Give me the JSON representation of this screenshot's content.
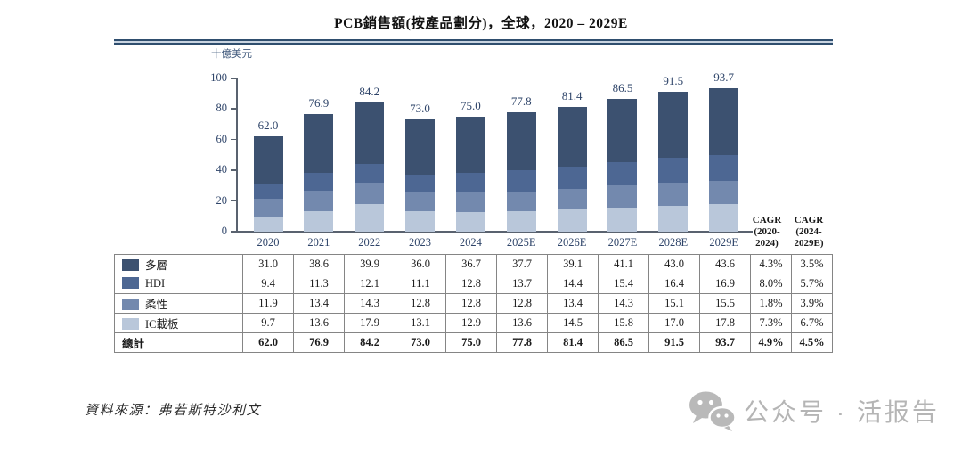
{
  "title": "PCB銷售額(按產品劃分)，全球，2020 – 2029E",
  "source": "資料來源：弗若斯特沙利文",
  "watermark": {
    "text": "公众号 · 活报告",
    "icon": "wechat-icon",
    "color": "#b5b5b5"
  },
  "chart_data": {
    "type": "bar",
    "stacked": true,
    "title": "PCB銷售額(按產品劃分)，全球，2020 – 2029E",
    "ylabel": "十億美元",
    "ylim": [
      0,
      100
    ],
    "yticks": [
      0,
      20,
      40,
      60,
      80,
      100
    ],
    "grid": false,
    "legend_position": "table-left",
    "categories": [
      "2020",
      "2021",
      "2022",
      "2023",
      "2024",
      "2025E",
      "2026E",
      "2027E",
      "2028E",
      "2029E"
    ],
    "series": [
      {
        "name": "IC載板",
        "color": "#b9c7da",
        "values": [
          9.7,
          13.6,
          17.9,
          13.1,
          12.9,
          13.6,
          14.5,
          15.8,
          17.0,
          17.8
        ]
      },
      {
        "name": "柔性",
        "color": "#7389ae",
        "values": [
          11.9,
          13.4,
          14.3,
          12.8,
          12.8,
          12.8,
          13.4,
          14.3,
          15.1,
          15.5
        ]
      },
      {
        "name": "HDI",
        "color": "#4d6793",
        "values": [
          9.4,
          11.3,
          12.1,
          11.1,
          12.8,
          13.7,
          14.4,
          15.4,
          16.4,
          16.9
        ]
      },
      {
        "name": "多層",
        "color": "#3c5170",
        "values": [
          31.0,
          38.6,
          39.9,
          36.0,
          36.7,
          37.7,
          39.1,
          41.1,
          43.0,
          43.6
        ]
      }
    ],
    "totals": [
      "62.0",
      "76.9",
      "84.2",
      "73.0",
      "75.0",
      "77.8",
      "81.4",
      "86.5",
      "91.5",
      "93.7"
    ]
  },
  "cagr_headers": [
    {
      "lines": [
        "CAGR",
        "(2020-",
        "2024)"
      ]
    },
    {
      "lines": [
        "CAGR",
        "(2024-",
        "2029E)"
      ]
    }
  ],
  "table": {
    "rows": [
      {
        "label": "多層",
        "swatch": "#3c5170",
        "bold": false,
        "values": [
          "31.0",
          "38.6",
          "39.9",
          "36.0",
          "36.7",
          "37.7",
          "39.1",
          "41.1",
          "43.0",
          "43.6"
        ],
        "cagr": [
          "4.3%",
          "3.5%"
        ]
      },
      {
        "label": "HDI",
        "swatch": "#4d6793",
        "bold": false,
        "values": [
          "9.4",
          "11.3",
          "12.1",
          "11.1",
          "12.8",
          "13.7",
          "14.4",
          "15.4",
          "16.4",
          "16.9"
        ],
        "cagr": [
          "8.0%",
          "5.7%"
        ]
      },
      {
        "label": "柔性",
        "swatch": "#7389ae",
        "bold": false,
        "values": [
          "11.9",
          "13.4",
          "14.3",
          "12.8",
          "12.8",
          "12.8",
          "13.4",
          "14.3",
          "15.1",
          "15.5"
        ],
        "cagr": [
          "1.8%",
          "3.9%"
        ]
      },
      {
        "label": "IC載板",
        "swatch": "#b9c7da",
        "bold": false,
        "values": [
          "9.7",
          "13.6",
          "17.9",
          "13.1",
          "12.9",
          "13.6",
          "14.5",
          "15.8",
          "17.0",
          "17.8"
        ],
        "cagr": [
          "7.3%",
          "6.7%"
        ]
      },
      {
        "label": "總計",
        "swatch": null,
        "bold": true,
        "values": [
          "62.0",
          "76.9",
          "84.2",
          "73.0",
          "75.0",
          "77.8",
          "81.4",
          "86.5",
          "91.5",
          "93.7"
        ],
        "cagr": [
          "4.9%",
          "4.5%"
        ]
      }
    ]
  }
}
